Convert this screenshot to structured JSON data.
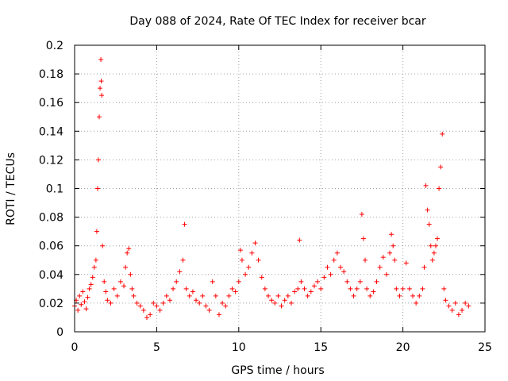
{
  "chart_data": {
    "type": "scatter",
    "title": "Day 088 of 2024, Rate Of TEC Index for receiver bcar",
    "xlabel": "GPS time / hours",
    "ylabel": "ROTI / TECUs",
    "xlim": [
      0,
      25
    ],
    "ylim": [
      0,
      0.2
    ],
    "xticks": [
      0,
      5,
      10,
      15,
      20,
      25
    ],
    "xtick_labels": [
      "0",
      "5",
      "10",
      "15",
      "20",
      "25"
    ],
    "yticks": [
      0,
      0.02,
      0.04,
      0.06,
      0.08,
      0.1,
      0.12,
      0.14,
      0.16,
      0.18,
      0.2
    ],
    "ytick_labels": [
      "0",
      "0.02",
      "0.04",
      "0.06",
      "0.08",
      "0.1",
      "0.12",
      "0.14",
      "0.16",
      "0.18",
      "0.2"
    ],
    "grid": true,
    "marker": "+",
    "color": "#ff0000",
    "series": [
      {
        "name": "ROTI",
        "points": [
          [
            0.0,
            0.018
          ],
          [
            0.1,
            0.022
          ],
          [
            0.2,
            0.015
          ],
          [
            0.3,
            0.025
          ],
          [
            0.4,
            0.019
          ],
          [
            0.5,
            0.028
          ],
          [
            0.6,
            0.021
          ],
          [
            0.7,
            0.016
          ],
          [
            0.8,
            0.024
          ],
          [
            0.9,
            0.03
          ],
          [
            1.0,
            0.033
          ],
          [
            1.1,
            0.038
          ],
          [
            1.2,
            0.045
          ],
          [
            1.3,
            0.05
          ],
          [
            1.35,
            0.07
          ],
          [
            1.4,
            0.1
          ],
          [
            1.45,
            0.12
          ],
          [
            1.5,
            0.15
          ],
          [
            1.55,
            0.17
          ],
          [
            1.6,
            0.19
          ],
          [
            1.62,
            0.175
          ],
          [
            1.65,
            0.165
          ],
          [
            1.7,
            0.06
          ],
          [
            1.8,
            0.035
          ],
          [
            1.9,
            0.028
          ],
          [
            2.0,
            0.022
          ],
          [
            2.2,
            0.02
          ],
          [
            2.4,
            0.03
          ],
          [
            2.6,
            0.025
          ],
          [
            2.8,
            0.035
          ],
          [
            3.0,
            0.032
          ],
          [
            3.1,
            0.045
          ],
          [
            3.2,
            0.055
          ],
          [
            3.3,
            0.058
          ],
          [
            3.4,
            0.04
          ],
          [
            3.5,
            0.03
          ],
          [
            3.6,
            0.025
          ],
          [
            3.8,
            0.02
          ],
          [
            4.0,
            0.018
          ],
          [
            4.2,
            0.015
          ],
          [
            4.4,
            0.01
          ],
          [
            4.6,
            0.012
          ],
          [
            4.8,
            0.02
          ],
          [
            5.0,
            0.018
          ],
          [
            5.2,
            0.015
          ],
          [
            5.4,
            0.02
          ],
          [
            5.6,
            0.025
          ],
          [
            5.8,
            0.022
          ],
          [
            6.0,
            0.03
          ],
          [
            6.2,
            0.035
          ],
          [
            6.4,
            0.042
          ],
          [
            6.6,
            0.05
          ],
          [
            6.7,
            0.075
          ],
          [
            6.8,
            0.03
          ],
          [
            7.0,
            0.025
          ],
          [
            7.2,
            0.028
          ],
          [
            7.4,
            0.022
          ],
          [
            7.6,
            0.02
          ],
          [
            7.8,
            0.025
          ],
          [
            8.0,
            0.018
          ],
          [
            8.2,
            0.015
          ],
          [
            8.4,
            0.035
          ],
          [
            8.6,
            0.025
          ],
          [
            8.8,
            0.012
          ],
          [
            9.0,
            0.02
          ],
          [
            9.2,
            0.018
          ],
          [
            9.4,
            0.025
          ],
          [
            9.6,
            0.03
          ],
          [
            9.8,
            0.028
          ],
          [
            10.0,
            0.035
          ],
          [
            10.1,
            0.057
          ],
          [
            10.2,
            0.05
          ],
          [
            10.4,
            0.04
          ],
          [
            10.6,
            0.045
          ],
          [
            10.8,
            0.055
          ],
          [
            11.0,
            0.062
          ],
          [
            11.2,
            0.05
          ],
          [
            11.4,
            0.038
          ],
          [
            11.6,
            0.03
          ],
          [
            11.8,
            0.025
          ],
          [
            12.0,
            0.022
          ],
          [
            12.2,
            0.02
          ],
          [
            12.4,
            0.025
          ],
          [
            12.6,
            0.018
          ],
          [
            12.8,
            0.022
          ],
          [
            13.0,
            0.025
          ],
          [
            13.2,
            0.02
          ],
          [
            13.4,
            0.028
          ],
          [
            13.6,
            0.03
          ],
          [
            13.7,
            0.064
          ],
          [
            13.8,
            0.035
          ],
          [
            14.0,
            0.03
          ],
          [
            14.2,
            0.025
          ],
          [
            14.4,
            0.028
          ],
          [
            14.6,
            0.032
          ],
          [
            14.8,
            0.035
          ],
          [
            15.0,
            0.03
          ],
          [
            15.2,
            0.038
          ],
          [
            15.4,
            0.045
          ],
          [
            15.6,
            0.04
          ],
          [
            15.8,
            0.05
          ],
          [
            16.0,
            0.055
          ],
          [
            16.2,
            0.045
          ],
          [
            16.4,
            0.042
          ],
          [
            16.6,
            0.035
          ],
          [
            16.8,
            0.03
          ],
          [
            17.0,
            0.025
          ],
          [
            17.2,
            0.03
          ],
          [
            17.4,
            0.035
          ],
          [
            17.5,
            0.082
          ],
          [
            17.6,
            0.065
          ],
          [
            17.7,
            0.05
          ],
          [
            17.8,
            0.03
          ],
          [
            18.0,
            0.025
          ],
          [
            18.2,
            0.028
          ],
          [
            18.4,
            0.035
          ],
          [
            18.6,
            0.045
          ],
          [
            18.8,
            0.052
          ],
          [
            19.0,
            0.04
          ],
          [
            19.2,
            0.055
          ],
          [
            19.3,
            0.068
          ],
          [
            19.4,
            0.06
          ],
          [
            19.5,
            0.05
          ],
          [
            19.6,
            0.03
          ],
          [
            19.8,
            0.025
          ],
          [
            20.0,
            0.03
          ],
          [
            20.2,
            0.048
          ],
          [
            20.4,
            0.03
          ],
          [
            20.6,
            0.025
          ],
          [
            20.8,
            0.02
          ],
          [
            21.0,
            0.025
          ],
          [
            21.2,
            0.03
          ],
          [
            21.3,
            0.045
          ],
          [
            21.4,
            0.102
          ],
          [
            21.5,
            0.085
          ],
          [
            21.6,
            0.075
          ],
          [
            21.7,
            0.06
          ],
          [
            21.8,
            0.05
          ],
          [
            21.9,
            0.055
          ],
          [
            22.0,
            0.06
          ],
          [
            22.1,
            0.065
          ],
          [
            22.2,
            0.1
          ],
          [
            22.3,
            0.115
          ],
          [
            22.4,
            0.138
          ],
          [
            22.5,
            0.03
          ],
          [
            22.6,
            0.022
          ],
          [
            22.8,
            0.018
          ],
          [
            23.0,
            0.015
          ],
          [
            23.2,
            0.02
          ],
          [
            23.4,
            0.012
          ],
          [
            23.6,
            0.015
          ],
          [
            23.8,
            0.02
          ],
          [
            24.0,
            0.018
          ]
        ]
      }
    ]
  }
}
